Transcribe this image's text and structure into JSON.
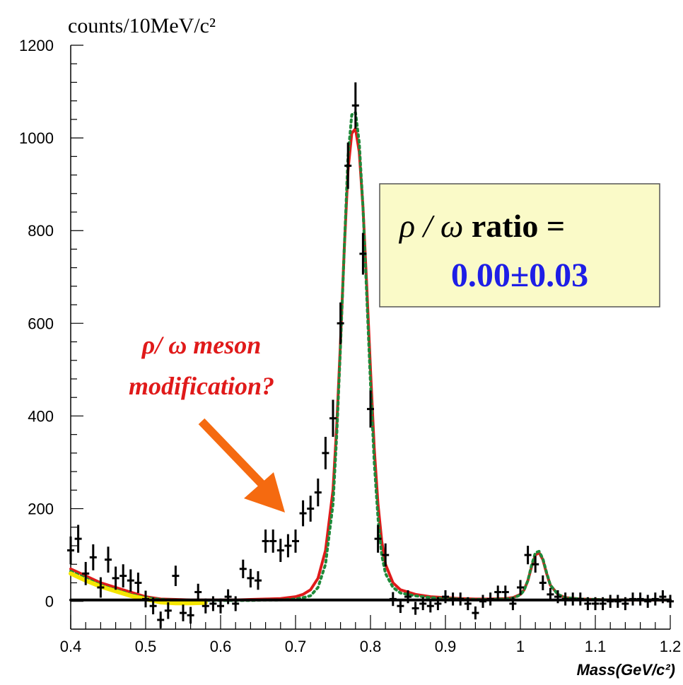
{
  "chart_data": {
    "type": "scatter",
    "ylabel": "counts/10MeV/c²",
    "xlabel": "Mass(GeV/c²)",
    "xlim": [
      0.4,
      1.2
    ],
    "ylim": [
      -60,
      1200
    ],
    "x_ticks": [
      "0.4",
      "0.5",
      "0.6",
      "0.7",
      "0.8",
      "0.9",
      "1",
      "1.1",
      "1.2"
    ],
    "y_ticks": [
      "0",
      "200",
      "400",
      "600",
      "800",
      "1000",
      "1200"
    ],
    "series": [
      {
        "style": "points-with-error-bars",
        "color": "#000000",
        "x": [
          0.4,
          0.41,
          0.42,
          0.43,
          0.44,
          0.45,
          0.46,
          0.47,
          0.48,
          0.49,
          0.5,
          0.51,
          0.52,
          0.53,
          0.54,
          0.55,
          0.56,
          0.57,
          0.58,
          0.59,
          0.6,
          0.61,
          0.62,
          0.63,
          0.64,
          0.65,
          0.66,
          0.67,
          0.68,
          0.69,
          0.7,
          0.71,
          0.72,
          0.73,
          0.74,
          0.75,
          0.76,
          0.77,
          0.78,
          0.79,
          0.8,
          0.81,
          0.82,
          0.83,
          0.84,
          0.85,
          0.86,
          0.87,
          0.88,
          0.89,
          0.9,
          0.91,
          0.92,
          0.93,
          0.94,
          0.95,
          0.96,
          0.97,
          0.98,
          0.99,
          1.0,
          1.01,
          1.02,
          1.03,
          1.04,
          1.05,
          1.06,
          1.07,
          1.08,
          1.09,
          1.1,
          1.11,
          1.12,
          1.13,
          1.14,
          1.15,
          1.16,
          1.17,
          1.18,
          1.19,
          1.2
        ],
        "y": [
          110,
          135,
          60,
          95,
          30,
          90,
          50,
          55,
          45,
          40,
          5,
          -10,
          -40,
          -20,
          55,
          -25,
          -30,
          20,
          -10,
          -5,
          -10,
          10,
          -5,
          70,
          50,
          45,
          130,
          130,
          110,
          120,
          130,
          190,
          200,
          235,
          320,
          395,
          600,
          940,
          1070,
          750,
          415,
          135,
          100,
          5,
          -10,
          10,
          -15,
          -5,
          -10,
          -5,
          10,
          5,
          5,
          -5,
          -25,
          0,
          5,
          20,
          20,
          -5,
          30,
          100,
          80,
          40,
          15,
          10,
          5,
          5,
          5,
          -5,
          -5,
          -5,
          0,
          0,
          -5,
          5,
          5,
          0,
          5,
          10,
          0
        ],
        "err": [
          30,
          30,
          25,
          28,
          22,
          28,
          25,
          25,
          24,
          22,
          18,
          18,
          18,
          18,
          22,
          18,
          18,
          18,
          16,
          16,
          16,
          16,
          16,
          20,
          20,
          20,
          25,
          25,
          25,
          25,
          25,
          28,
          28,
          30,
          35,
          40,
          45,
          50,
          50,
          45,
          40,
          30,
          25,
          15,
          15,
          14,
          14,
          14,
          14,
          14,
          14,
          14,
          14,
          14,
          14,
          14,
          14,
          14,
          14,
          14,
          16,
          20,
          18,
          16,
          14,
          14,
          14,
          14,
          14,
          14,
          14,
          14,
          14,
          14,
          14,
          14,
          14,
          14,
          14,
          14,
          14
        ]
      },
      {
        "style": "solid-line",
        "color": "#e01a1a",
        "x": [
          0.4,
          0.42,
          0.44,
          0.46,
          0.48,
          0.5,
          0.52,
          0.54,
          0.56,
          0.58,
          0.6,
          0.62,
          0.64,
          0.66,
          0.68,
          0.7,
          0.71,
          0.72,
          0.73,
          0.74,
          0.75,
          0.755,
          0.76,
          0.765,
          0.77,
          0.775,
          0.78,
          0.785,
          0.79,
          0.795,
          0.8,
          0.805,
          0.81,
          0.815,
          0.82,
          0.83,
          0.84,
          0.86,
          0.88,
          0.9,
          0.92,
          0.94,
          0.96,
          0.98,
          0.99,
          1.0,
          1.005,
          1.01,
          1.015,
          1.02,
          1.025,
          1.03,
          1.035,
          1.04,
          1.05,
          1.06,
          1.08,
          1.1,
          1.12,
          1.14,
          1.16,
          1.18,
          1.2
        ],
        "y": [
          70,
          55,
          40,
          30,
          20,
          10,
          5,
          4,
          3,
          3,
          3,
          3,
          4,
          5,
          6,
          10,
          15,
          25,
          50,
          110,
          240,
          380,
          560,
          760,
          930,
          1010,
          1020,
          970,
          850,
          680,
          500,
          330,
          210,
          130,
          80,
          40,
          25,
          15,
          10,
          8,
          6,
          5,
          5,
          6,
          8,
          15,
          25,
          45,
          75,
          100,
          105,
          90,
          60,
          35,
          15,
          8,
          5,
          4,
          3,
          3,
          3,
          3,
          3
        ]
      },
      {
        "style": "dotted-line",
        "color": "#1f8a3a",
        "x": [
          0.4,
          0.42,
          0.44,
          0.46,
          0.48,
          0.5,
          0.52,
          0.54,
          0.56,
          0.58,
          0.6,
          0.62,
          0.64,
          0.66,
          0.68,
          0.7,
          0.71,
          0.72,
          0.73,
          0.74,
          0.75,
          0.755,
          0.76,
          0.765,
          0.77,
          0.775,
          0.78,
          0.785,
          0.79,
          0.795,
          0.8,
          0.805,
          0.81,
          0.815,
          0.82,
          0.83,
          0.84,
          0.86,
          0.88,
          0.9,
          0.92,
          0.94,
          0.96,
          0.98,
          0.99,
          1.0,
          1.005,
          1.01,
          1.015,
          1.02,
          1.025,
          1.03,
          1.035,
          1.04,
          1.05,
          1.06,
          1.08,
          1.1,
          1.12,
          1.14,
          1.16,
          1.18,
          1.2
        ],
        "y": [
          65,
          50,
          35,
          25,
          15,
          8,
          4,
          3,
          2,
          2,
          2,
          2,
          2,
          3,
          3,
          5,
          8,
          12,
          30,
          80,
          210,
          360,
          550,
          760,
          960,
          1050,
          1055,
          990,
          850,
          660,
          470,
          300,
          180,
          100,
          60,
          30,
          18,
          12,
          8,
          6,
          5,
          4,
          4,
          5,
          7,
          14,
          24,
          45,
          78,
          105,
          108,
          92,
          62,
          35,
          15,
          8,
          5,
          4,
          3,
          3,
          3,
          3,
          3
        ]
      },
      {
        "style": "thick-line",
        "color": "#f5e600",
        "x": [
          0.4,
          0.42,
          0.44,
          0.46,
          0.48,
          0.5,
          0.52,
          0.54,
          0.56,
          0.58
        ],
        "y": [
          60,
          45,
          32,
          22,
          12,
          5,
          -2,
          -4,
          -4,
          -3
        ]
      },
      {
        "style": "thick-line",
        "color": "#000000",
        "x": [
          0.4,
          1.2
        ],
        "y": [
          3,
          3
        ]
      }
    ],
    "annotations": {
      "box_line1_ratio": "ratio =",
      "box_line1_symbol": "ρ / ω ",
      "box_line2": "0.00±0.03",
      "note_line1": "ρ/ ω meson",
      "note_line2": "modification?"
    }
  },
  "colors": {
    "box_fill": "#fafac8",
    "arrow": "#f56a10",
    "note": "#e01a1a",
    "ratio_value": "#1e1ee6"
  }
}
